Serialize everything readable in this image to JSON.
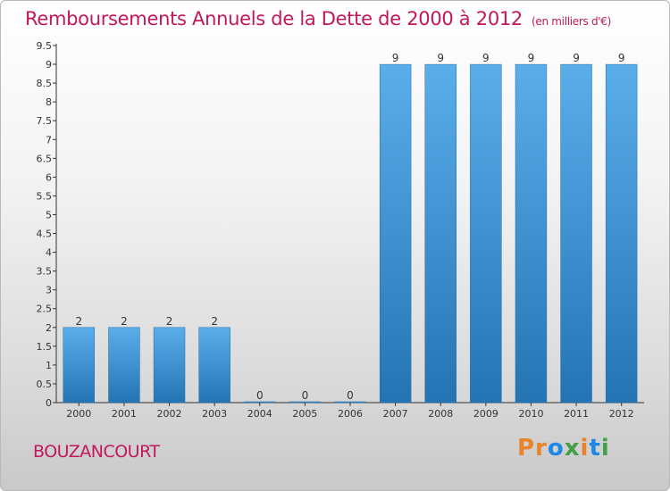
{
  "header": {
    "title": "Remboursements Annuels de la Dette de 2000 à 2012",
    "unit": "(en milliers d'€)"
  },
  "commune": "BOUZANCOURT",
  "logo": {
    "text": "Proxiti"
  },
  "colors": {
    "title": "#c2185b",
    "bar_top": "#5aaeea",
    "bar_bottom": "#2474b4",
    "axis": "#333333"
  },
  "chart_data": {
    "type": "bar",
    "title": "Remboursements Annuels de la Dette de 2000 à 2012",
    "subtitle": "(en milliers d'€)",
    "categories": [
      "2000",
      "2001",
      "2002",
      "2003",
      "2004",
      "2005",
      "2006",
      "2007",
      "2008",
      "2009",
      "2010",
      "2011",
      "2012"
    ],
    "values": [
      2,
      2,
      2,
      2,
      0,
      0,
      0,
      9,
      9,
      9,
      9,
      9,
      9
    ],
    "data_labels": [
      "2",
      "2",
      "2",
      "2",
      "0",
      "0",
      "0",
      "9",
      "9",
      "9",
      "9",
      "9",
      "9"
    ],
    "y_ticks": [
      "0",
      "0.5",
      "1",
      "1.5",
      "2",
      "2.5",
      "3",
      "3.5",
      "4",
      "4.5",
      "5",
      "5.5",
      "6",
      "6.5",
      "7",
      "7.5",
      "8",
      "8.5",
      "9",
      "9.5"
    ],
    "ylim": [
      0,
      9.5
    ],
    "grid": false,
    "xlabel": "",
    "ylabel": ""
  }
}
